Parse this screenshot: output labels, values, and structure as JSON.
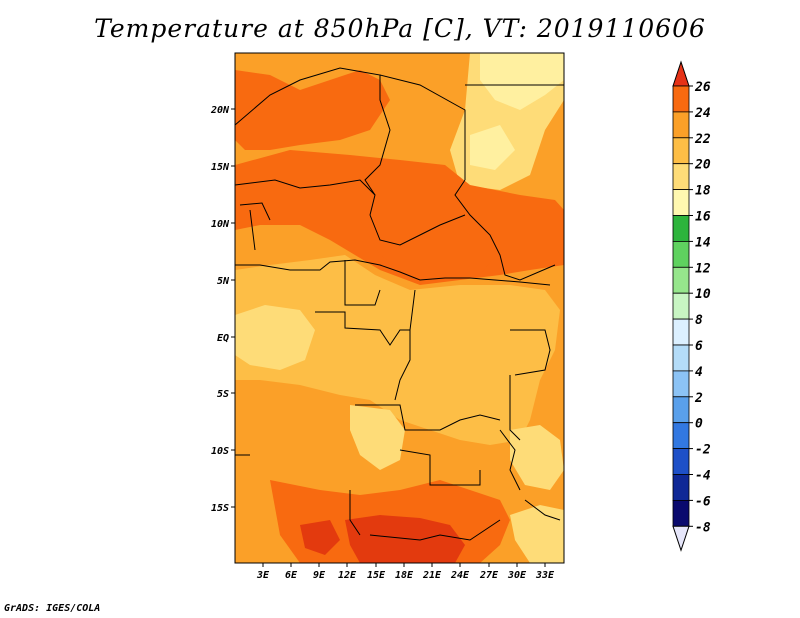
{
  "title": "Temperature at 850hPa [C], VT: 2019110606",
  "credit": "GrADS: IGES/COLA",
  "map": {
    "lat_labels": [
      "20N",
      "15N",
      "10N",
      "5N",
      "EQ",
      "5S",
      "10S",
      "15S"
    ],
    "lon_labels": [
      "3E",
      "6E",
      "9E",
      "12E",
      "15E",
      "18E",
      "21E",
      "24E",
      "27E",
      "30E",
      "33E"
    ],
    "palette": {
      "c14_16": "#fff0a0",
      "c16_18": "#fedc78",
      "c18_20": "#fdbe46",
      "c20_22": "#fba028",
      "c22_24": "#f86a10",
      "c24_26": "#e33a0e"
    }
  },
  "colorbar": {
    "levels": [
      "26",
      "24",
      "22",
      "20",
      "18",
      "16",
      "14",
      "12",
      "10",
      "8",
      "6",
      "4",
      "2",
      "0",
      "-2",
      "-4",
      "-6",
      "-8"
    ],
    "colors": [
      "#e63217",
      "#f86a10",
      "#fba028",
      "#fdbe46",
      "#fedc78",
      "#fff8b0",
      "#2db43c",
      "#5fd25f",
      "#96e68c",
      "#c8f5c3",
      "#dcf0ff",
      "#b4dcf8",
      "#8cc3f5",
      "#5aa0eb",
      "#3278e1",
      "#1e50c8",
      "#0f2896",
      "#0a0a6e"
    ],
    "low_end_color": "#e6e6fa"
  }
}
